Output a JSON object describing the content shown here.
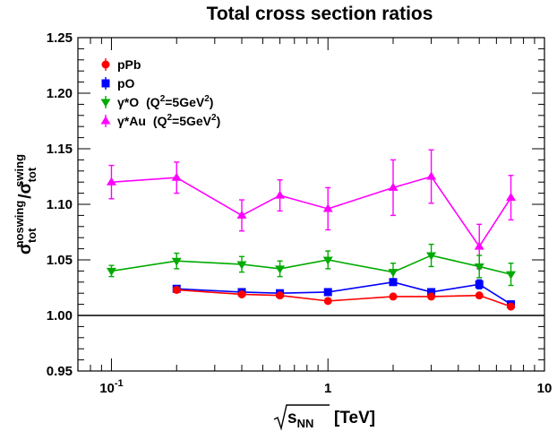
{
  "chart_data": {
    "type": "line",
    "title": "Total cross section ratios",
    "xlabel": {
      "base": "s",
      "sub": "NN",
      "unit": "[TeV]"
    },
    "ylabel": {
      "num_base": "σ",
      "num_sub": "tot",
      "num_sup": "noswing",
      "sep": "/",
      "den_base": "σ",
      "den_sub": "tot",
      "den_sup": "swing"
    },
    "x_scale": "log",
    "xlim": [
      0.07,
      10
    ],
    "ylim": [
      0.95,
      1.25
    ],
    "x_ticks": [
      {
        "value": 0.1,
        "base": "10",
        "exp": "-1"
      },
      {
        "value": 1,
        "base": "1",
        "exp": ""
      },
      {
        "value": 10,
        "base": "10",
        "exp": ""
      }
    ],
    "y_ticks": [
      {
        "value": 0.95,
        "label": "0.95"
      },
      {
        "value": 1.0,
        "label": "1.00"
      },
      {
        "value": 1.05,
        "label": "1.05"
      },
      {
        "value": 1.1,
        "label": "1.10"
      },
      {
        "value": 1.15,
        "label": "1.15"
      },
      {
        "value": 1.2,
        "label": "1.20"
      },
      {
        "value": 1.25,
        "label": "1.25"
      }
    ],
    "reference_line": 1.0,
    "legend_position": "top-left",
    "series": [
      {
        "name": "pPb",
        "legend_main": "pPb",
        "q2": null,
        "color": "#ff0000",
        "marker": "circle",
        "x": [
          0.2,
          0.4,
          0.6,
          1,
          2,
          3,
          5,
          7
        ],
        "y": [
          1.023,
          1.019,
          1.018,
          1.013,
          1.017,
          1.017,
          1.018,
          1.008
        ],
        "err": [
          0.002,
          0.002,
          0.002,
          0.002,
          0.002,
          0.002,
          0.002,
          0.002
        ]
      },
      {
        "name": "pO",
        "legend_main": "pO",
        "q2": null,
        "color": "#0000ff",
        "marker": "square",
        "x": [
          0.2,
          0.4,
          0.6,
          1,
          2,
          3,
          5,
          7
        ],
        "y": [
          1.024,
          1.021,
          1.02,
          1.021,
          1.03,
          1.021,
          1.028,
          1.01
        ],
        "err": [
          0.002,
          0.002,
          0.002,
          0.002,
          0.002,
          0.002,
          0.004,
          0.002
        ]
      },
      {
        "name": "γ*O (Q²=5GeV²)",
        "legend_main": "γ*O",
        "q2": {
          "pre": "(Q",
          "sup1": "2",
          "mid": "=5GeV",
          "sup2": "2",
          "post": ")"
        },
        "color": "#00aa00",
        "marker": "triangle-down",
        "x": [
          0.1,
          0.2,
          0.4,
          0.6,
          1,
          2,
          3,
          5,
          7
        ],
        "y": [
          1.04,
          1.049,
          1.046,
          1.042,
          1.05,
          1.039,
          1.054,
          1.044,
          1.037
        ],
        "err": [
          0.005,
          0.007,
          0.007,
          0.007,
          0.008,
          0.008,
          0.01,
          0.01,
          0.01
        ]
      },
      {
        "name": "γ*Au (Q²=5GeV²)",
        "legend_main": "γ*Au",
        "q2": {
          "pre": "(Q",
          "sup1": "2",
          "mid": "=5GeV",
          "sup2": "2",
          "post": ")"
        },
        "color": "#ff00ff",
        "marker": "triangle-up",
        "x": [
          0.1,
          0.2,
          0.4,
          0.6,
          1,
          2,
          3,
          5,
          7
        ],
        "y": [
          1.12,
          1.124,
          1.09,
          1.108,
          1.096,
          1.115,
          1.125,
          1.062,
          1.106
        ],
        "err": [
          0.015,
          0.014,
          0.014,
          0.014,
          0.019,
          0.025,
          0.024,
          0.02,
          0.02
        ]
      }
    ]
  }
}
